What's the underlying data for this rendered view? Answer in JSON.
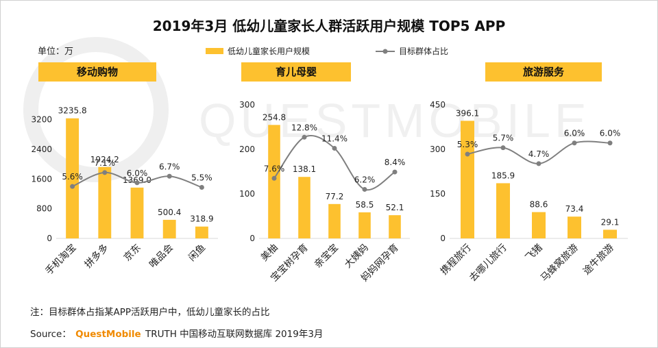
{
  "title": "2019年3月 低幼儿童家长人群活跃用户规模 TOP5 APP",
  "unit": "单位：万",
  "legend": {
    "bar": "低幼儿童家长用户规模",
    "line": "目标群体占比"
  },
  "watermark": "QUESTMOBILE",
  "colors": {
    "bar": "#FDC12F",
    "line": "#7F7F7F",
    "brand": "#F08A00"
  },
  "chart_data": [
    {
      "type": "bar",
      "title": "移动购物",
      "categories": [
        "手机淘宝",
        "拼多多",
        "京东",
        "唯品会",
        "闲鱼"
      ],
      "values": [
        3235.8,
        1924.2,
        1369.0,
        500.4,
        318.9
      ],
      "value_labels": [
        "3235.8",
        "1924.2",
        "1369.0",
        "500.4",
        "318.9"
      ],
      "share": [
        5.6,
        7.1,
        6.0,
        6.7,
        5.5
      ],
      "share_labels": [
        "5.6%",
        "7.1%",
        "6.0%",
        "6.7%",
        "5.5%"
      ],
      "yticks": [
        "0",
        "800",
        "1600",
        "2400",
        "3200"
      ],
      "ylim": [
        0,
        3600
      ],
      "share_ylim": [
        0,
        14.4
      ]
    },
    {
      "type": "bar",
      "title": "育儿母婴",
      "categories": [
        "美柚",
        "宝宝树孕育",
        "亲宝宝",
        "大姨妈",
        "妈妈网孕育"
      ],
      "values": [
        254.8,
        138.1,
        77.2,
        58.5,
        52.1
      ],
      "value_labels": [
        "254.8",
        "138.1",
        "77.2",
        "58.5",
        "52.1"
      ],
      "share": [
        7.6,
        12.8,
        11.4,
        6.2,
        8.4
      ],
      "share_labels": [
        "7.6%",
        "12.8%",
        "11.4%",
        "6.2%",
        "8.4%"
      ],
      "yticks": [
        "0",
        "100",
        "200",
        "300"
      ],
      "ylim": [
        0,
        300
      ],
      "share_ylim": [
        0,
        16.9
      ]
    },
    {
      "type": "bar",
      "title": "旅游服务",
      "categories": [
        "携程旅行",
        "去哪儿旅行",
        "飞猪",
        "马蜂窝旅游",
        "途牛旅游"
      ],
      "values": [
        396.1,
        185.9,
        88.6,
        73.4,
        29.1
      ],
      "value_labels": [
        "396.1",
        "185.9",
        "88.6",
        "73.4",
        "29.1"
      ],
      "share": [
        5.3,
        5.7,
        4.7,
        6.0,
        6.0
      ],
      "share_labels": [
        "5.3%",
        "5.7%",
        "4.7%",
        "6.0%",
        "6.0%"
      ],
      "yticks": [
        "0",
        "150",
        "300",
        "450"
      ],
      "ylim": [
        0,
        450
      ],
      "share_ylim": [
        0,
        8.4
      ]
    }
  ],
  "note": "注：目标群体占指某APP活跃用户中，低幼儿童家长的占比",
  "source": {
    "prefix": "Source：",
    "brand": "QuestMobile",
    "suffix": "TRUTH 中国移动互联网数据库 2019年3月"
  }
}
